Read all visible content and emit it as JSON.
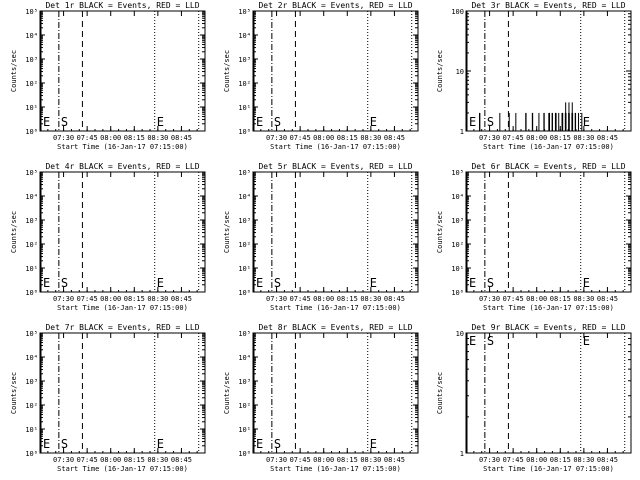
{
  "chart_data": [
    {
      "type": "line",
      "title": "Det 1r BLACK = Events, RED = LLD",
      "xlabel": "Start Time (16-Jan-17 07:15:00)",
      "ylabel": "Counts/sec",
      "x_ticks": [
        "07:30",
        "07:45",
        "08:00",
        "08:15",
        "08:30",
        "08:45"
      ],
      "y_scale": "log",
      "y_ticks": [
        "10⁰",
        "10¹",
        "10²",
        "10³",
        "10⁴",
        "10⁵"
      ],
      "ylim": [
        1,
        100000
      ],
      "markers": [
        {
          "label": "E",
          "time": "07:15",
          "style": "solid"
        },
        {
          "label": "S",
          "time": "07:27",
          "style": "dash-dot"
        },
        {
          "label": "",
          "time": "07:42",
          "style": "dashed"
        },
        {
          "label": "E",
          "time": "08:28",
          "style": "dotted"
        },
        {
          "label": "",
          "time": "08:56",
          "style": "dotted"
        }
      ],
      "series": []
    },
    {
      "type": "line",
      "title": "Det 2r BLACK = Events, RED = LLD",
      "xlabel": "Start Time (16-Jan-17 07:15:00)",
      "ylabel": "Counts/sec",
      "x_ticks": [
        "07:30",
        "07:45",
        "08:00",
        "08:15",
        "08:30",
        "08:45"
      ],
      "y_scale": "log",
      "y_ticks": [
        "10⁰",
        "10¹",
        "10²",
        "10³",
        "10⁴",
        "10⁵"
      ],
      "ylim": [
        1,
        100000
      ],
      "markers": [
        {
          "label": "E",
          "time": "07:15",
          "style": "solid"
        },
        {
          "label": "S",
          "time": "07:27",
          "style": "dash-dot"
        },
        {
          "label": "",
          "time": "07:42",
          "style": "dashed"
        },
        {
          "label": "E",
          "time": "08:28",
          "style": "dotted"
        },
        {
          "label": "",
          "time": "08:56",
          "style": "dotted"
        }
      ],
      "series": []
    },
    {
      "type": "line",
      "title": "Det 3r BLACK = Events, RED = LLD",
      "xlabel": "Start Time (16-Jan-17 07:15:00)",
      "ylabel": "Counts/sec",
      "x_ticks": [
        "07:30",
        "07:45",
        "08:00",
        "08:15",
        "08:30",
        "08:45"
      ],
      "y_scale": "log",
      "y_ticks": [
        "1",
        "10",
        "100"
      ],
      "ylim": [
        1,
        100
      ],
      "markers": [
        {
          "label": "E",
          "time": "07:15",
          "style": "solid"
        },
        {
          "label": "S",
          "time": "07:27",
          "style": "dash-dot"
        },
        {
          "label": "",
          "time": "07:42",
          "style": "dashed"
        },
        {
          "label": "E",
          "time": "08:28",
          "style": "dotted"
        },
        {
          "label": "",
          "time": "08:56",
          "style": "dotted"
        }
      ],
      "series": [
        {
          "values": [
            [
              0.08,
              1
            ],
            [
              0.082,
              2
            ],
            [
              0.084,
              2
            ],
            [
              0.086,
              1
            ],
            [
              0.1,
              1
            ],
            [
              0.2,
              1
            ],
            [
              0.205,
              2
            ],
            [
              0.21,
              1
            ],
            [
              0.26,
              1
            ],
            [
              0.262,
              2
            ],
            [
              0.264,
              1
            ],
            [
              0.3,
              1
            ],
            [
              0.302,
              2
            ],
            [
              0.304,
              1
            ],
            [
              0.36,
              1
            ],
            [
              0.362,
              2
            ],
            [
              0.364,
              2
            ],
            [
              0.366,
              1
            ],
            [
              0.4,
              1
            ],
            [
              0.402,
              2
            ],
            [
              0.404,
              2
            ],
            [
              0.406,
              1
            ],
            [
              0.44,
              1
            ],
            [
              0.442,
              2
            ],
            [
              0.444,
              1
            ],
            [
              0.47,
              1
            ],
            [
              0.472,
              2
            ],
            [
              0.474,
              2
            ],
            [
              0.476,
              1
            ],
            [
              0.5,
              1
            ],
            [
              0.502,
              2
            ],
            [
              0.504,
              2
            ],
            [
              0.506,
              2
            ],
            [
              0.508,
              1
            ],
            [
              0.52,
              1
            ],
            [
              0.522,
              2
            ],
            [
              0.524,
              2
            ],
            [
              0.526,
              1
            ],
            [
              0.54,
              1
            ],
            [
              0.542,
              2
            ],
            [
              0.544,
              2
            ],
            [
              0.546,
              2
            ],
            [
              0.548,
              1
            ],
            [
              0.56,
              1
            ],
            [
              0.562,
              2
            ],
            [
              0.564,
              1
            ],
            [
              0.58,
              1
            ],
            [
              0.582,
              2
            ],
            [
              0.584,
              2
            ],
            [
              0.586,
              2
            ],
            [
              0.588,
              1
            ],
            [
              0.6,
              1
            ],
            [
              0.602,
              2
            ],
            [
              0.604,
              3
            ],
            [
              0.606,
              2
            ],
            [
              0.608,
              1
            ],
            [
              0.62,
              1
            ],
            [
              0.622,
              2
            ],
            [
              0.624,
              3
            ],
            [
              0.626,
              2
            ],
            [
              0.628,
              1
            ],
            [
              0.64,
              1
            ],
            [
              0.642,
              2
            ],
            [
              0.644,
              3
            ],
            [
              0.646,
              2
            ],
            [
              0.648,
              1
            ],
            [
              0.66,
              1
            ],
            [
              0.662,
              2
            ],
            [
              0.664,
              2
            ],
            [
              0.666,
              1
            ],
            [
              0.68,
              1
            ],
            [
              0.682,
              2
            ],
            [
              0.684,
              1
            ],
            [
              0.7,
              1
            ],
            [
              0.702,
              2
            ],
            [
              0.704,
              1
            ]
          ]
        }
      ]
    },
    {
      "type": "line",
      "title": "Det 4r BLACK = Events, RED = LLD",
      "xlabel": "Start Time (16-Jan-17 07:15:00)",
      "ylabel": "Counts/sec",
      "x_ticks": [
        "07:30",
        "07:45",
        "08:00",
        "08:15",
        "08:30",
        "08:45"
      ],
      "y_scale": "log",
      "y_ticks": [
        "10⁰",
        "10¹",
        "10²",
        "10³",
        "10⁴",
        "10⁵"
      ],
      "ylim": [
        1,
        100000
      ],
      "markers": [
        {
          "label": "E",
          "time": "07:15",
          "style": "solid"
        },
        {
          "label": "S",
          "time": "07:27",
          "style": "dash-dot"
        },
        {
          "label": "",
          "time": "07:42",
          "style": "dashed"
        },
        {
          "label": "E",
          "time": "08:28",
          "style": "dotted"
        },
        {
          "label": "",
          "time": "08:56",
          "style": "dotted"
        }
      ],
      "series": []
    },
    {
      "type": "line",
      "title": "Det 5r BLACK = Events, RED = LLD",
      "xlabel": "Start Time (16-Jan-17 07:15:00)",
      "ylabel": "Counts/sec",
      "x_ticks": [
        "07:30",
        "07:45",
        "08:00",
        "08:15",
        "08:30",
        "08:45"
      ],
      "y_scale": "log",
      "y_ticks": [
        "10⁰",
        "10¹",
        "10²",
        "10³",
        "10⁴",
        "10⁵"
      ],
      "ylim": [
        1,
        100000
      ],
      "markers": [
        {
          "label": "E",
          "time": "07:15",
          "style": "solid"
        },
        {
          "label": "S",
          "time": "07:27",
          "style": "dash-dot"
        },
        {
          "label": "",
          "time": "07:42",
          "style": "dashed"
        },
        {
          "label": "E",
          "time": "08:28",
          "style": "dotted"
        },
        {
          "label": "",
          "time": "08:56",
          "style": "dotted"
        }
      ],
      "series": []
    },
    {
      "type": "line",
      "title": "Det 6r BLACK = Events, RED = LLD",
      "xlabel": "Start Time (16-Jan-17 07:15:00)",
      "ylabel": "Counts/sec",
      "x_ticks": [
        "07:30",
        "07:45",
        "08:00",
        "08:15",
        "08:30",
        "08:45"
      ],
      "y_scale": "log",
      "y_ticks": [
        "10⁰",
        "10¹",
        "10²",
        "10³",
        "10⁴",
        "10⁵"
      ],
      "ylim": [
        1,
        100000
      ],
      "markers": [
        {
          "label": "E",
          "time": "07:15",
          "style": "solid"
        },
        {
          "label": "S",
          "time": "07:27",
          "style": "dash-dot"
        },
        {
          "label": "",
          "time": "07:42",
          "style": "dashed"
        },
        {
          "label": "E",
          "time": "08:28",
          "style": "dotted"
        },
        {
          "label": "",
          "time": "08:56",
          "style": "dotted"
        }
      ],
      "series": []
    },
    {
      "type": "line",
      "title": "Det 7r BLACK = Events, RED = LLD",
      "xlabel": "Start Time (16-Jan-17 07:15:00)",
      "ylabel": "Counts/sec",
      "x_ticks": [
        "07:30",
        "07:45",
        "08:00",
        "08:15",
        "08:30",
        "08:45"
      ],
      "y_scale": "log",
      "y_ticks": [
        "10⁰",
        "10¹",
        "10²",
        "10³",
        "10⁴",
        "10⁵"
      ],
      "ylim": [
        1,
        100000
      ],
      "markers": [
        {
          "label": "E",
          "time": "07:15",
          "style": "solid"
        },
        {
          "label": "S",
          "time": "07:27",
          "style": "dash-dot"
        },
        {
          "label": "",
          "time": "07:42",
          "style": "dashed"
        },
        {
          "label": "E",
          "time": "08:28",
          "style": "dotted"
        },
        {
          "label": "",
          "time": "08:56",
          "style": "dotted"
        }
      ],
      "series": []
    },
    {
      "type": "line",
      "title": "Det 8r BLACK = Events, RED = LLD",
      "xlabel": "Start Time (16-Jan-17 07:15:00)",
      "ylabel": "Counts/sec",
      "x_ticks": [
        "07:30",
        "07:45",
        "08:00",
        "08:15",
        "08:30",
        "08:45"
      ],
      "y_scale": "log",
      "y_ticks": [
        "10⁰",
        "10¹",
        "10²",
        "10³",
        "10⁴",
        "10⁵"
      ],
      "ylim": [
        1,
        100000
      ],
      "markers": [
        {
          "label": "E",
          "time": "07:15",
          "style": "solid"
        },
        {
          "label": "S",
          "time": "07:27",
          "style": "dash-dot"
        },
        {
          "label": "",
          "time": "07:42",
          "style": "dashed"
        },
        {
          "label": "E",
          "time": "08:28",
          "style": "dotted"
        },
        {
          "label": "",
          "time": "08:56",
          "style": "dotted"
        }
      ],
      "series": []
    },
    {
      "type": "line",
      "title": "Det 9r BLACK = Events, RED = LLD",
      "xlabel": "Start Time (16-Jan-17 07:15:00)",
      "ylabel": "Counts/sec",
      "x_ticks": [
        "07:30",
        "07:45",
        "08:00",
        "08:15",
        "08:30",
        "08:45"
      ],
      "y_scale": "log",
      "y_ticks": [
        "1",
        "10"
      ],
      "ylim": [
        1,
        10
      ],
      "markers": [
        {
          "label": "E",
          "time": "07:15",
          "style": "solid"
        },
        {
          "label": "S",
          "time": "07:27",
          "style": "dash-dot"
        },
        {
          "label": "",
          "time": "07:42",
          "style": "dashed"
        },
        {
          "label": "E",
          "time": "08:28",
          "style": "dotted"
        },
        {
          "label": "",
          "time": "08:56",
          "style": "dotted"
        }
      ],
      "series": []
    }
  ]
}
